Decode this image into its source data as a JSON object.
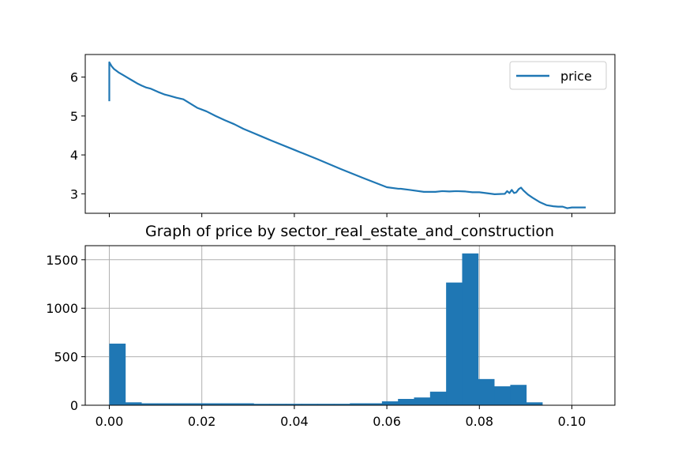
{
  "chart_data": [
    {
      "type": "line",
      "title": "",
      "xlabel": "",
      "ylabel": "",
      "xlim": [
        -0.0052,
        0.1093
      ],
      "ylim": [
        2.5,
        6.58
      ],
      "x_ticks": [
        0.0,
        0.02,
        0.04,
        0.06,
        0.08,
        0.1
      ],
      "y_ticks": [
        3,
        4,
        5,
        6
      ],
      "y_tick_labels": [
        "3",
        "4",
        "5",
        "6"
      ],
      "grid": false,
      "legend": "top-right",
      "series": [
        {
          "name": "price",
          "color": "#1f77b4",
          "x": [
            0.0,
            0.0,
            0.0005,
            0.001,
            0.002,
            0.003,
            0.004,
            0.005,
            0.006,
            0.007,
            0.008,
            0.009,
            0.0105,
            0.012,
            0.013,
            0.0145,
            0.016,
            0.0175,
            0.019,
            0.021,
            0.023,
            0.025,
            0.027,
            0.029,
            0.031,
            0.033,
            0.035,
            0.04,
            0.045,
            0.05,
            0.055,
            0.06,
            0.0625,
            0.063,
            0.065,
            0.068,
            0.0705,
            0.072,
            0.0735,
            0.075,
            0.077,
            0.0785,
            0.08,
            0.082,
            0.0833,
            0.0855,
            0.086,
            0.0865,
            0.087,
            0.0875,
            0.088,
            0.0885,
            0.089,
            0.0895,
            0.0905,
            0.0915,
            0.093,
            0.0945,
            0.096,
            0.097,
            0.098,
            0.099,
            0.1,
            0.1005,
            0.101,
            0.1015,
            0.103
          ],
          "y": [
            5.38,
            6.38,
            6.28,
            6.21,
            6.12,
            6.05,
            5.98,
            5.91,
            5.84,
            5.78,
            5.73,
            5.7,
            5.62,
            5.55,
            5.52,
            5.47,
            5.43,
            5.32,
            5.21,
            5.12,
            5.0,
            4.89,
            4.79,
            4.67,
            4.57,
            4.47,
            4.37,
            4.13,
            3.89,
            3.64,
            3.4,
            3.17,
            3.13,
            3.13,
            3.1,
            3.05,
            3.05,
            3.07,
            3.06,
            3.07,
            3.06,
            3.04,
            3.04,
            3.01,
            2.99,
            3.0,
            3.07,
            3.02,
            3.1,
            3.02,
            3.04,
            3.12,
            3.16,
            3.09,
            2.98,
            2.9,
            2.79,
            2.71,
            2.68,
            2.67,
            2.67,
            2.63,
            2.65,
            2.65,
            2.65,
            2.65,
            2.65
          ]
        }
      ]
    },
    {
      "type": "bar",
      "title": "Graph of price by sector_real_estate_and_construction",
      "xlabel": "",
      "ylabel": "",
      "xlim": [
        -0.0052,
        0.1093
      ],
      "ylim": [
        0,
        1645
      ],
      "x_ticks": [
        0.0,
        0.02,
        0.04,
        0.06,
        0.08,
        0.1
      ],
      "x_tick_labels": [
        "0.00",
        "0.02",
        "0.04",
        "0.06",
        "0.08",
        "0.10"
      ],
      "y_ticks": [
        0,
        500,
        1000,
        1500
      ],
      "y_tick_labels": [
        "0",
        "500",
        "1000",
        "1500"
      ],
      "grid": true,
      "color": "#1f77b4",
      "bin_start": 0.0,
      "bin_width": 0.003467,
      "values": [
        635,
        30,
        20,
        20,
        20,
        20,
        20,
        20,
        20,
        15,
        15,
        15,
        15,
        15,
        15,
        20,
        20,
        40,
        65,
        80,
        140,
        1265,
        1565,
        270,
        195,
        210,
        30
      ]
    }
  ]
}
